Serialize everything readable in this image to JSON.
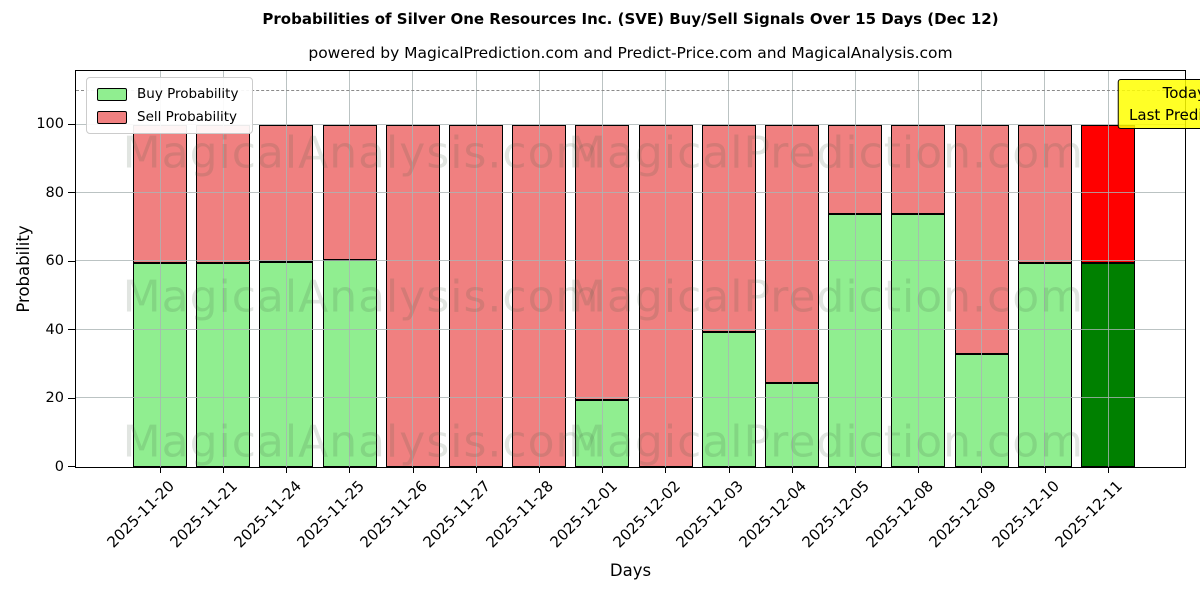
{
  "chart_data": {
    "type": "bar",
    "stacked": true,
    "title": "Probabilities of Silver One Resources Inc. (SVE) Buy/Sell Signals Over 15 Days (Dec 12)",
    "subtitle": "powered by MagicalPrediction.com and Predict-Price.com and MagicalAnalysis.com",
    "xlabel": "Days",
    "ylabel": "Probability",
    "ylim": [
      0,
      115.5
    ],
    "yticks": [
      0,
      20,
      40,
      60,
      80,
      100
    ],
    "grid": true,
    "threshold_line": {
      "y": 110,
      "style": "dashed",
      "color": "#8a8a8a"
    },
    "categories": [
      "2025-11-20",
      "2025-11-21",
      "2025-11-24",
      "2025-11-25",
      "2025-11-26",
      "2025-11-27",
      "2025-11-28",
      "2025-12-01",
      "2025-12-02",
      "2025-12-03",
      "2025-12-04",
      "2025-12-05",
      "2025-12-08",
      "2025-12-09",
      "2025-12-10",
      "2025-12-11"
    ],
    "series": [
      {
        "name": "Buy Probability",
        "color": "#90ee90",
        "today_color": "#008000",
        "values": [
          59.5,
          59.5,
          60,
          60.5,
          0,
          0,
          0,
          19.5,
          0,
          39.5,
          24.5,
          74,
          74,
          33,
          59.5,
          59.5
        ]
      },
      {
        "name": "Sell Probability",
        "color": "#f08080",
        "today_color": "#ff0000",
        "values": [
          40.5,
          40.5,
          40,
          39.5,
          100,
          100,
          100,
          80.5,
          100,
          60.5,
          75.5,
          26,
          26,
          67,
          40.5,
          40.5
        ]
      }
    ],
    "legend": {
      "position": "upper-left"
    },
    "annotation": {
      "line1": "Today",
      "line2": "Last Prediction",
      "bg": "#ffff00",
      "border": "#000000"
    },
    "watermarks": [
      "MagicalAnalysis.com",
      "MagicalPrediction.com"
    ],
    "bar_edge_color": "#000000"
  }
}
